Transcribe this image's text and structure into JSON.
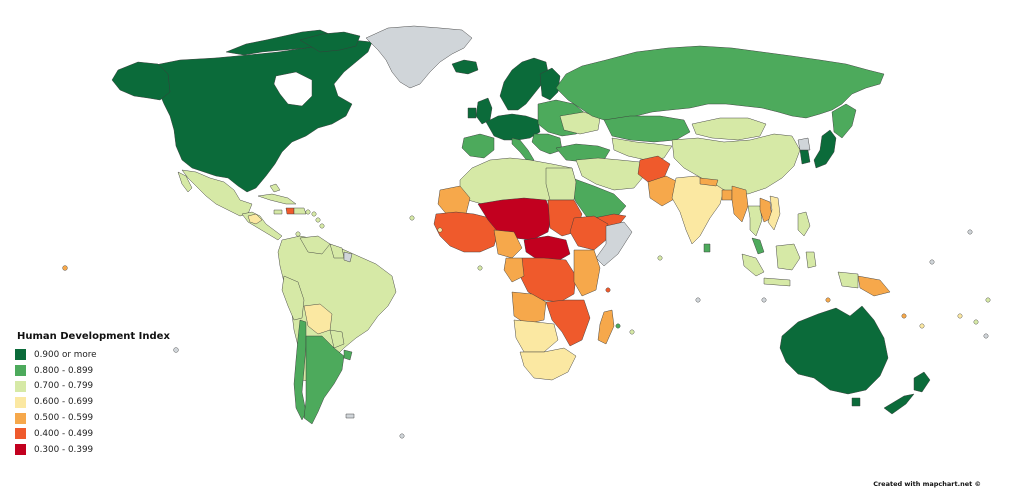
{
  "legend": {
    "title": "Human Development Index",
    "categories": [
      {
        "label": "0.900 or more",
        "color": "#0b6b3a"
      },
      {
        "label": "0.800 - 0.899",
        "color": "#4daa5c"
      },
      {
        "label": "0.700 - 0.799",
        "color": "#d6e9a6"
      },
      {
        "label": "0.600 - 0.699",
        "color": "#fbe8a2"
      },
      {
        "label": "0.500 - 0.599",
        "color": "#f6a84b"
      },
      {
        "label": "0.400 - 0.499",
        "color": "#ef5a2c"
      },
      {
        "label": "0.300 - 0.399",
        "color": "#c2001f"
      }
    ]
  },
  "no_data_color": "#d0d5d9",
  "credit": "Created with mapchart.net ©"
}
